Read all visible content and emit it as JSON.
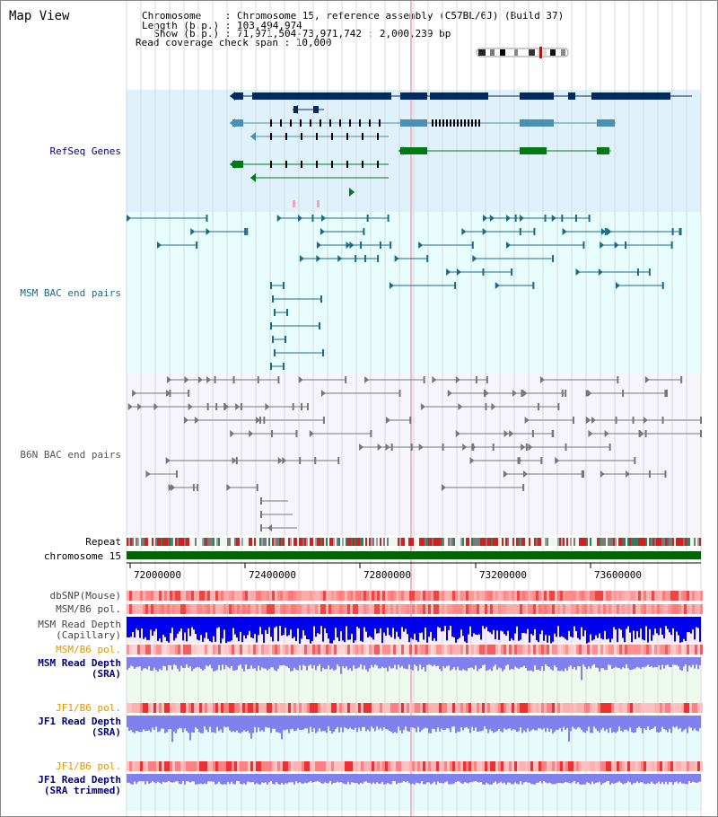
{
  "view_title": "Map View",
  "header": {
    "chromosome": "Chromosome    : Chromosome 15, reference assembly (C57BL/6J) (Build 37)",
    "length": "Length (b.p.) : 103,494,974",
    "show": "  Show (b.p.) : 71,971,504-73,971,742 : 2,000,239 bp",
    "coverage": "Read coverage check span : 10,000"
  },
  "tracks": {
    "refseq": "RefSeq Genes",
    "msm_bac": "MSM BAC end pairs",
    "b6n_bac": "B6N BAC end pairs",
    "repeat": "Repeat",
    "chromosome": "chromosome 15",
    "dbsnp": "dbSNP(Mouse)",
    "msm_pol_1": "MSM/B6 pol.",
    "msm_depth_cap_1": "MSM Read Depth",
    "msm_depth_cap_2": "(Capillary)",
    "msm_pol_2": "MSM/B6 pol.",
    "msm_depth_sra_1": "MSM Read Depth",
    "msm_depth_sra_2": "(SRA)",
    "jf1_pol_1": "JF1/B6 pol.",
    "jf1_depth_sra_1": "JF1 Read Depth",
    "jf1_depth_sra_2": "(SRA)",
    "jf1_pol_2": "JF1/B6 pol.",
    "jf1_depth_trim_1": "JF1 Read Depth",
    "jf1_depth_trim_2": "(SRA trimmed)"
  },
  "axis": {
    "ticks": [
      "72000000",
      "72400000",
      "72800000",
      "73200000",
      "73600000"
    ]
  },
  "colors": {
    "refseq_bg": "#dff1fb",
    "msm_bg": "#e8fdfd",
    "b6n_bg": "#f5f5fb",
    "gene_navy": "#002a62",
    "gene_steel": "#4a90b2",
    "gene_green": "#007a16",
    "msm_line": "#1a6a8a",
    "b6n_line": "#777777",
    "chromosome": "#006400",
    "snp_red": "#ff6666",
    "depth_blue": "#0000ee",
    "depth_lavender": "#8080ee",
    "label_navy": "#000080",
    "label_orange": "#e69400",
    "label_grey": "#444444"
  }
}
